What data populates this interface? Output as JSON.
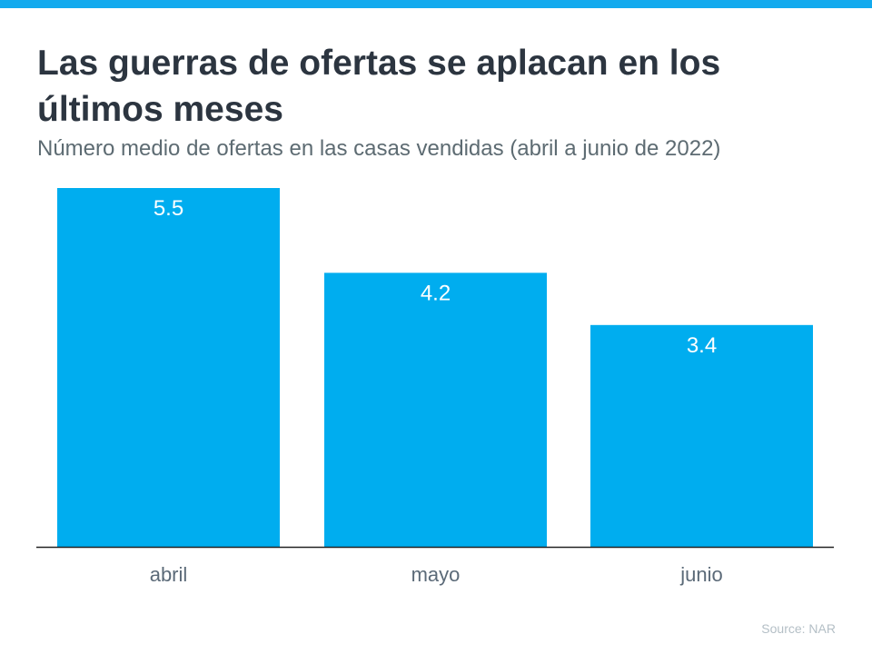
{
  "colors": {
    "accent": "#00adef",
    "bar": "#00adef",
    "title": "#2c3540",
    "axis": "#222222"
  },
  "header": {
    "title": "Las guerras de ofertas se aplacan en los últimos meses",
    "subtitle": "Número medio de ofertas en las casas vendidas (abril a junio de 2022)"
  },
  "chart_data": {
    "type": "bar",
    "title": "Las guerras de ofertas se aplacan en los últimos meses",
    "subtitle": "Número medio de ofertas en las casas vendidas (abril a junio de 2022)",
    "categories": [
      "abril",
      "mayo",
      "junio"
    ],
    "values": [
      5.5,
      4.2,
      3.4
    ],
    "data_labels": [
      "5.5",
      "4.2",
      "3.4"
    ],
    "ylim": [
      0,
      5.5
    ],
    "grid": false,
    "xlabel": "",
    "ylabel": ""
  },
  "footer": {
    "source": "Source: NAR"
  }
}
